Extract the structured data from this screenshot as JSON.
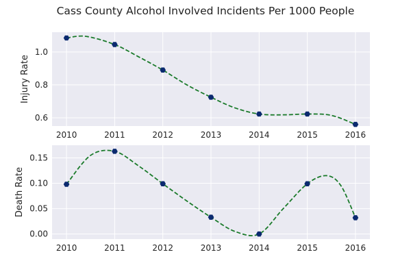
{
  "figure": {
    "title": "Cass County Alcohol Involved Incidents Per 1000 People"
  },
  "colors": {
    "background": "#eaeaf2",
    "grid": "#ffffff",
    "line": "#1a7a2a",
    "marker": "#0b2a6f"
  },
  "chart_data": [
    {
      "type": "line",
      "title": "Cass County Alcohol Involved Incidents Per 1000 People",
      "xlabel": "",
      "ylabel": "Injury Rate",
      "x": [
        2010,
        2011,
        2012,
        2013,
        2014,
        2015,
        2016
      ],
      "x_tick_labels": [
        "2010",
        "2011",
        "2012",
        "2013",
        "2014",
        "2015",
        "2016"
      ],
      "y": [
        1.085,
        1.045,
        0.89,
        0.725,
        0.623,
        0.623,
        0.56
      ],
      "curve": [
        [
          2010,
          1.085
        ],
        [
          2010.4,
          1.095
        ],
        [
          2011,
          1.045
        ],
        [
          2011.5,
          0.97
        ],
        [
          2012,
          0.89
        ],
        [
          2012.5,
          0.8
        ],
        [
          2013,
          0.725
        ],
        [
          2013.5,
          0.66
        ],
        [
          2014,
          0.623
        ],
        [
          2014.5,
          0.618
        ],
        [
          2015,
          0.623
        ],
        [
          2015.5,
          0.615
        ],
        [
          2016,
          0.56
        ]
      ],
      "y_ticks": [
        0.6,
        0.8,
        1.0
      ],
      "y_tick_labels": [
        "0.6",
        "0.8",
        "1.0"
      ],
      "xlim": [
        2009.7,
        2016.3
      ],
      "ylim": [
        0.55,
        1.12
      ],
      "grid": true,
      "line_style": "dashed"
    },
    {
      "type": "line",
      "xlabel": "",
      "ylabel": "Death Rate",
      "x": [
        2010,
        2011,
        2012,
        2013,
        2014,
        2015,
        2016
      ],
      "x_tick_labels": [
        "2010",
        "2011",
        "2012",
        "2013",
        "2014",
        "2015",
        "2016"
      ],
      "y": [
        0.098,
        0.163,
        0.099,
        0.033,
        0.0,
        0.099,
        0.032
      ],
      "curve": [
        [
          2010,
          0.098
        ],
        [
          2010.5,
          0.155
        ],
        [
          2011,
          0.163
        ],
        [
          2011.5,
          0.134
        ],
        [
          2012,
          0.099
        ],
        [
          2012.5,
          0.065
        ],
        [
          2013,
          0.033
        ],
        [
          2013.5,
          0.005
        ],
        [
          2014,
          0.0
        ],
        [
          2014.5,
          0.05
        ],
        [
          2015,
          0.099
        ],
        [
          2015.4,
          0.115
        ],
        [
          2015.7,
          0.095
        ],
        [
          2016,
          0.032
        ]
      ],
      "y_ticks": [
        0.0,
        0.05,
        0.1,
        0.15
      ],
      "y_tick_labels": [
        "0.00",
        "0.05",
        "0.10",
        "0.15"
      ],
      "xlim": [
        2009.7,
        2016.3
      ],
      "ylim": [
        -0.01,
        0.175
      ],
      "grid": true,
      "line_style": "dashed"
    }
  ]
}
